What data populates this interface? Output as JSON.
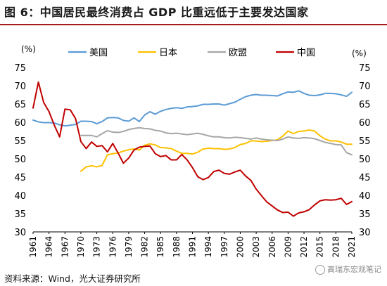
{
  "header": {
    "title": "图 6：中国居民最终消费占 GDP 比重远低于主要发达国家"
  },
  "footer": {
    "source": "资料来源：Wind，光大证券研究所",
    "watermark": "高瑞东宏观笔记"
  },
  "chart_data": {
    "type": "line",
    "title": "图 6：中国居民最终消费占 GDP 比重远低于主要发达国家",
    "ylabel_left": "(%)",
    "ylabel_right": "(%)",
    "ylim": [
      30,
      75
    ],
    "xlim": [
      1961,
      2021
    ],
    "yticks": [
      30,
      35,
      40,
      45,
      50,
      55,
      60,
      65,
      70,
      75
    ],
    "xtick_labels": [
      "1961",
      "1964",
      "1967",
      "1970",
      "1973",
      "1976",
      "1979",
      "1982",
      "1985",
      "1988",
      "1991",
      "1994",
      "1997",
      "2000",
      "2003",
      "2006",
      "2009",
      "2012",
      "2015",
      "2018",
      "2021"
    ],
    "grid": false,
    "legend_position": "top",
    "series": [
      {
        "name": "美国",
        "color": "#5b9bd5",
        "x": [
          1961,
          1962,
          1963,
          1964,
          1965,
          1966,
          1967,
          1968,
          1969,
          1970,
          1971,
          1972,
          1973,
          1974,
          1975,
          1976,
          1977,
          1978,
          1979,
          1980,
          1981,
          1982,
          1983,
          1984,
          1985,
          1986,
          1987,
          1988,
          1989,
          1990,
          1991,
          1992,
          1993,
          1994,
          1995,
          1996,
          1997,
          1998,
          1999,
          2000,
          2001,
          2002,
          2003,
          2004,
          2005,
          2006,
          2007,
          2008,
          2009,
          2010,
          2011,
          2012,
          2013,
          2014,
          2015,
          2016,
          2017,
          2018,
          2019,
          2020,
          2021
        ],
        "values": [
          60.6,
          60.1,
          59.9,
          59.9,
          59.8,
          59.3,
          59.0,
          59.2,
          59.4,
          60.3,
          60.3,
          60.2,
          59.6,
          60.2,
          61.2,
          61.3,
          61.2,
          60.5,
          60.3,
          61.2,
          60.2,
          62.0,
          62.9,
          62.2,
          63.0,
          63.5,
          63.8,
          64.0,
          63.8,
          64.2,
          64.3,
          64.5,
          64.9,
          64.9,
          65.0,
          65.0,
          64.7,
          65.1,
          65.5,
          66.3,
          67.0,
          67.4,
          67.6,
          67.4,
          67.4,
          67.3,
          67.2,
          67.8,
          68.3,
          68.2,
          68.6,
          67.9,
          67.4,
          67.3,
          67.5,
          67.9,
          67.9,
          67.8,
          67.5,
          67.1,
          68.2
        ]
      },
      {
        "name": "日本",
        "color": "#ffc000",
        "x": [
          1970,
          1971,
          1972,
          1973,
          1974,
          1975,
          1976,
          1977,
          1978,
          1979,
          1980,
          1981,
          1982,
          1983,
          1984,
          1985,
          1986,
          1987,
          1988,
          1989,
          1990,
          1991,
          1992,
          1993,
          1994,
          1995,
          1996,
          1997,
          1998,
          1999,
          2000,
          2001,
          2002,
          2003,
          2004,
          2005,
          2006,
          2007,
          2008,
          2009,
          2010,
          2011,
          2012,
          2013,
          2014,
          2015,
          2016,
          2017,
          2018,
          2019,
          2020,
          2021
        ],
        "values": [
          46.6,
          47.8,
          48.1,
          47.8,
          48.2,
          51.1,
          51.4,
          51.6,
          52.1,
          52.5,
          52.7,
          52.4,
          53.7,
          54.1,
          53.8,
          53.1,
          53.0,
          52.8,
          52.1,
          51.5,
          51.5,
          51.3,
          51.8,
          52.7,
          52.9,
          52.8,
          52.8,
          52.6,
          52.7,
          53.1,
          53.9,
          54.2,
          54.9,
          54.9,
          54.7,
          54.8,
          55.0,
          55.2,
          56.2,
          57.6,
          56.9,
          57.5,
          57.6,
          57.9,
          57.6,
          56.3,
          55.4,
          54.9,
          54.9,
          54.6,
          54.0,
          54.0
        ]
      },
      {
        "name": "欧盟",
        "color": "#a6a6a6",
        "x": [
          1970,
          1971,
          1972,
          1973,
          1974,
          1975,
          1976,
          1977,
          1978,
          1979,
          1980,
          1981,
          1982,
          1983,
          1984,
          1985,
          1986,
          1987,
          1988,
          1989,
          1990,
          1991,
          1992,
          1993,
          1994,
          1995,
          1996,
          1997,
          1998,
          1999,
          2000,
          2001,
          2002,
          2003,
          2004,
          2005,
          2006,
          2007,
          2008,
          2009,
          2010,
          2011,
          2012,
          2013,
          2014,
          2015,
          2016,
          2017,
          2018,
          2019,
          2020,
          2021
        ],
        "values": [
          56.4,
          56.4,
          56.4,
          56.0,
          56.9,
          57.7,
          57.3,
          57.2,
          57.5,
          58.0,
          58.3,
          58.5,
          58.3,
          58.2,
          57.8,
          57.6,
          57.1,
          56.9,
          57.0,
          56.8,
          56.6,
          56.8,
          57.0,
          56.7,
          56.3,
          56.0,
          56.0,
          55.8,
          55.7,
          55.9,
          55.8,
          55.6,
          55.4,
          55.7,
          55.4,
          55.2,
          55.1,
          55.0,
          55.4,
          56.0,
          55.7,
          55.6,
          55.8,
          55.7,
          55.5,
          55.0,
          54.5,
          54.2,
          53.9,
          53.8,
          51.7,
          51.1
        ]
      },
      {
        "name": "中国",
        "color": "#c00000",
        "x": [
          1961,
          1962,
          1963,
          1964,
          1965,
          1966,
          1967,
          1968,
          1969,
          1970,
          1971,
          1972,
          1973,
          1974,
          1975,
          1976,
          1977,
          1978,
          1979,
          1980,
          1981,
          1982,
          1983,
          1984,
          1985,
          1986,
          1987,
          1988,
          1989,
          1990,
          1991,
          1992,
          1993,
          1994,
          1995,
          1996,
          1997,
          1998,
          1999,
          2000,
          2001,
          2002,
          2003,
          2004,
          2005,
          2006,
          2007,
          2008,
          2009,
          2010,
          2011,
          2012,
          2013,
          2014,
          2015,
          2016,
          2017,
          2018,
          2019,
          2020,
          2021
        ],
        "values": [
          63.9,
          71.0,
          65.4,
          62.9,
          59.2,
          56.0,
          63.6,
          63.4,
          61.0,
          54.7,
          52.8,
          54.6,
          53.4,
          53.6,
          51.9,
          54.2,
          51.6,
          48.8,
          50.2,
          52.4,
          53.2,
          53.4,
          53.5,
          51.4,
          50.6,
          50.9,
          49.7,
          49.7,
          51.2,
          49.7,
          47.6,
          45.1,
          44.3,
          44.9,
          46.5,
          46.9,
          46.0,
          45.8,
          46.4,
          46.9,
          45.3,
          44.1,
          41.7,
          39.9,
          38.2,
          37.1,
          36.0,
          35.3,
          35.4,
          34.3,
          35.2,
          35.5,
          36.1,
          37.4,
          38.5,
          38.8,
          38.7,
          38.8,
          39.2,
          37.5,
          38.3
        ]
      }
    ]
  }
}
